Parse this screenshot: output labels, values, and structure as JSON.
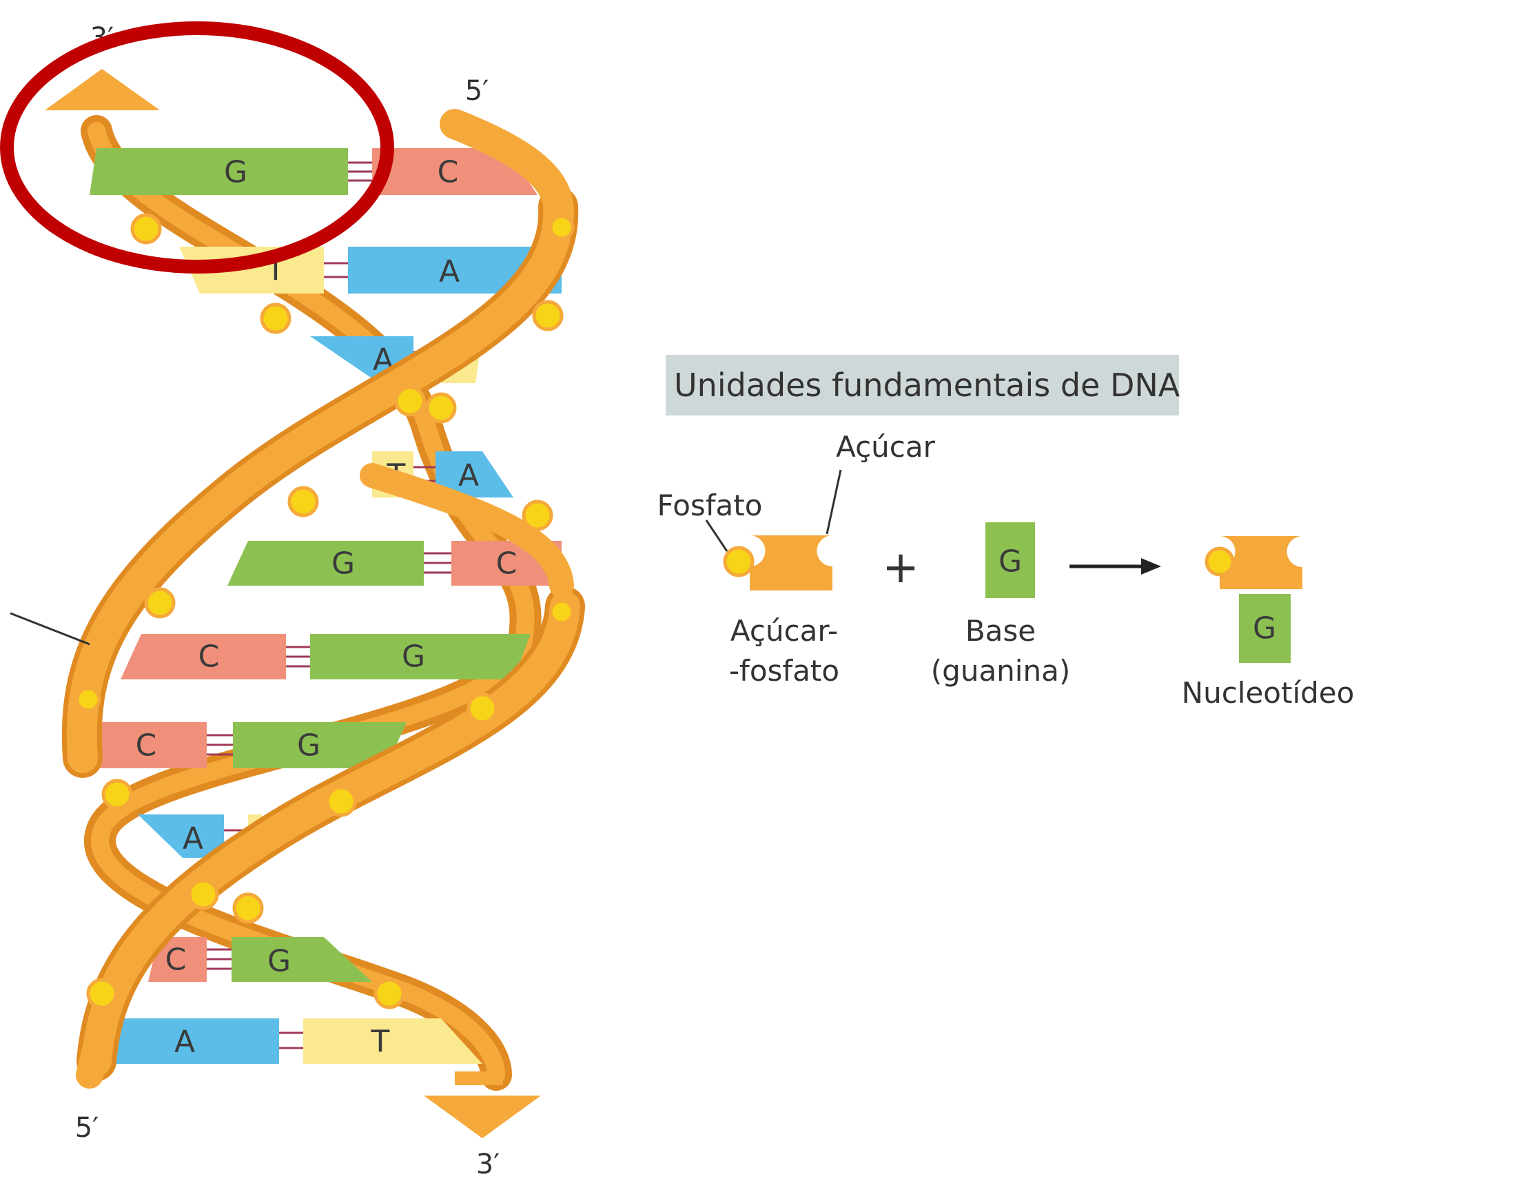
{
  "helix": {
    "end_top_left": "3′",
    "end_top_right": "5′",
    "end_bottom_left": "5′",
    "end_bottom_right": "3′",
    "pairs": [
      {
        "left": "G",
        "right": "C"
      },
      {
        "left": "T",
        "right": "A"
      },
      {
        "left": "A",
        "right": "T"
      },
      {
        "left": "T",
        "right": "A"
      },
      {
        "left": "G",
        "right": "C"
      },
      {
        "left": "C",
        "right": "G"
      },
      {
        "left": "C",
        "right": "G"
      },
      {
        "left": "A",
        "right": "T"
      },
      {
        "left": "C",
        "right": "G"
      },
      {
        "left": "A",
        "right": "T"
      }
    ]
  },
  "legend": {
    "title": "Unidades fundamentais de DNA",
    "sugar_label": "Açúcar",
    "phosphate_label": "Fosfato",
    "sugar_phosphate_line1": "Açúcar-",
    "sugar_phosphate_line2": "-fosfato",
    "plus": "+",
    "base_letter": "G",
    "base_line1": "Base",
    "base_line2": "(guanina)",
    "nucleotide_letter": "G",
    "nucleotide_label": "Nucleotídeo"
  },
  "colors": {
    "backbone": "#f5a93a",
    "backbone_dark": "#e08a22",
    "G": "#8cc152",
    "C": "#f0907a",
    "A": "#5bbde8",
    "T": "#fbe98f",
    "phosphate": "#f8d418",
    "highlight": "#c00000"
  }
}
